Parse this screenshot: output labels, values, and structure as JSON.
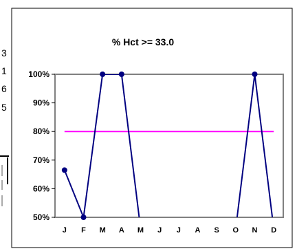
{
  "chart_data": {
    "type": "line",
    "title": "% Hct >= 33.0",
    "categories": [
      "J",
      "F",
      "M",
      "A",
      "M",
      "J",
      "J",
      "A",
      "S",
      "O",
      "N",
      "D"
    ],
    "y_tick_labels": [
      "50%",
      "60%",
      "70%",
      "80%",
      "90%",
      "100%"
    ],
    "ylim": [
      50,
      100
    ],
    "grid": false,
    "series": [
      {
        "values": [
          66.5,
          50,
          100,
          100,
          46,
          null,
          null,
          null,
          null,
          46,
          100,
          46
        ],
        "color": "#000080"
      },
      {
        "values": [
          80,
          80,
          80,
          80,
          80,
          80,
          80,
          80,
          80,
          80,
          80,
          80
        ],
        "color": "#ff00ff"
      }
    ]
  },
  "left_fragments": [
    "3",
    "1",
    "6",
    "5"
  ]
}
